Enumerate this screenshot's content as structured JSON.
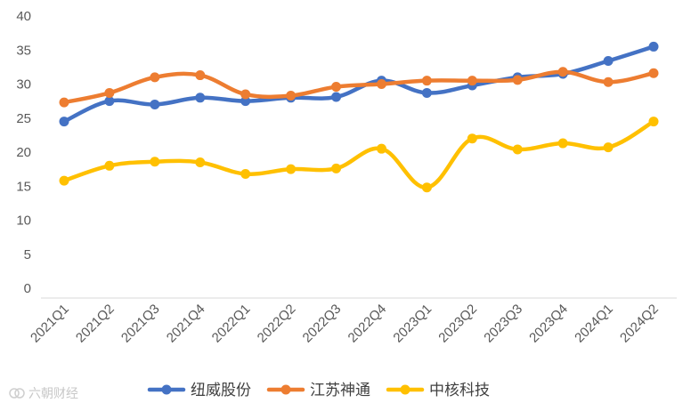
{
  "chart_data": {
    "type": "line",
    "categories": [
      "2021Q1",
      "2021Q2",
      "2021Q3",
      "2021Q4",
      "2022Q1",
      "2022Q2",
      "2022Q3",
      "2022Q4",
      "2023Q1",
      "2023Q2",
      "2023Q3",
      "2023Q4",
      "2024Q1",
      "2024Q2"
    ],
    "ylim": [
      0,
      40
    ],
    "yticks": [
      0,
      5,
      10,
      15,
      20,
      25,
      30,
      35,
      40
    ],
    "grid": false,
    "smooth": true,
    "legend_position": "bottom",
    "series": [
      {
        "name": "纽威股份",
        "color": "#4472C4",
        "values": [
          24.5,
          27.5,
          27.0,
          28.0,
          27.5,
          28.0,
          28.1,
          30.5,
          28.7,
          29.8,
          31.0,
          31.5,
          33.4,
          35.5
        ]
      },
      {
        "name": "江苏神通",
        "color": "#ED7D31",
        "values": [
          27.3,
          28.7,
          31.0,
          31.3,
          28.5,
          28.3,
          29.6,
          30.0,
          30.5,
          30.5,
          30.6,
          31.8,
          30.3,
          31.6
        ]
      },
      {
        "name": "中核科技",
        "color": "#FFC000",
        "values": [
          15.8,
          18.0,
          18.6,
          18.5,
          16.8,
          17.5,
          17.6,
          20.5,
          14.8,
          22.0,
          20.4,
          21.3,
          20.7,
          24.5
        ]
      }
    ]
  },
  "watermark": {
    "text": "六朝财经"
  }
}
